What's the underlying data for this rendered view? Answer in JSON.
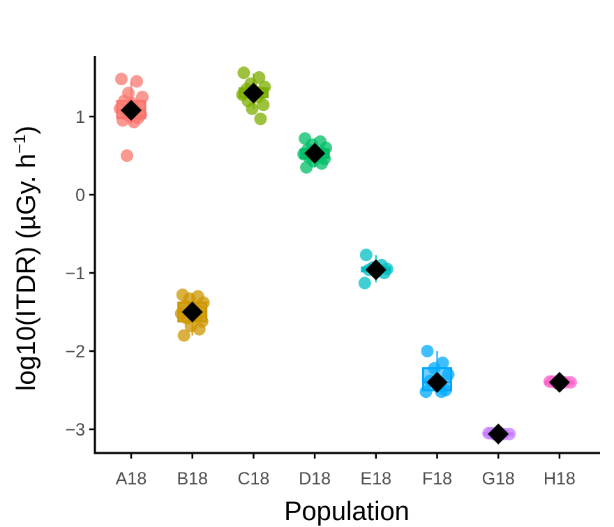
{
  "chart_data": {
    "type": "scatter",
    "subtype": "boxplot-with-jittered-points-and-mean-markers",
    "xlabel": "Population",
    "ylabel_main": "log10(ITDR) (µGy. h",
    "ylabel_sup": "−1",
    "ylabel_close": ")",
    "ylim": [
      -3.3,
      1.8
    ],
    "yticks": [
      1,
      0,
      -1,
      -2,
      -3
    ],
    "ytick_labels": [
      "1",
      "0",
      "−1",
      "−2",
      "−3"
    ],
    "categories": [
      "A18",
      "B18",
      "C18",
      "D18",
      "E18",
      "F18",
      "G18",
      "H18"
    ],
    "grid": false,
    "legend": "none",
    "series": [
      {
        "category": "A18",
        "color": "#F8766D",
        "box": {
          "q1": 0.98,
          "median": 1.08,
          "q3": 1.2,
          "whisker_low": 0.9,
          "whisker_high": 1.45
        },
        "mean": 1.08,
        "points": [
          1.48,
          1.45,
          1.3,
          1.25,
          1.2,
          1.17,
          1.12,
          1.1,
          1.08,
          1.05,
          1.03,
          1.0,
          0.98,
          0.95,
          0.93,
          0.5
        ]
      },
      {
        "category": "B18",
        "color": "#CD9600",
        "box": {
          "q1": -1.62,
          "median": -1.5,
          "q3": -1.38,
          "whisker_low": -1.8,
          "whisker_high": -1.27
        },
        "mean": -1.5,
        "points": [
          -1.28,
          -1.3,
          -1.33,
          -1.38,
          -1.42,
          -1.45,
          -1.5,
          -1.52,
          -1.55,
          -1.58,
          -1.62,
          -1.68,
          -1.72,
          -1.8
        ]
      },
      {
        "category": "C18",
        "color": "#7CAE00",
        "box": {
          "q1": 1.25,
          "median": 1.31,
          "q3": 1.36,
          "whisker_low": 1.1,
          "whisker_high": 1.55
        },
        "mean": 1.3,
        "points": [
          1.56,
          1.5,
          1.42,
          1.38,
          1.35,
          1.32,
          1.3,
          1.28,
          1.25,
          1.2,
          1.15,
          1.1,
          0.97
        ]
      },
      {
        "category": "D18",
        "color": "#00BE67",
        "box": {
          "q1": 0.47,
          "median": 0.52,
          "q3": 0.58,
          "whisker_low": 0.35,
          "whisker_high": 0.72
        },
        "mean": 0.53,
        "points": [
          0.72,
          0.68,
          0.64,
          0.6,
          0.58,
          0.55,
          0.53,
          0.52,
          0.5,
          0.48,
          0.46,
          0.43,
          0.4,
          0.35
        ]
      },
      {
        "category": "E18",
        "color": "#00BFC4",
        "box": {
          "q1": -0.98,
          "median": -0.95,
          "q3": -0.93,
          "whisker_low": -1.12,
          "whisker_high": -0.77
        },
        "mean": -0.96,
        "points": [
          -0.77,
          -0.9,
          -0.93,
          -0.95,
          -0.96,
          -0.98,
          -1.0,
          -1.13
        ]
      },
      {
        "category": "F18",
        "color": "#00A9FF",
        "box": {
          "q1": -2.5,
          "median": -2.4,
          "q3": -2.22,
          "whisker_low": -2.52,
          "whisker_high": -2.0
        },
        "mean": -2.4,
        "points": [
          -2.0,
          -2.15,
          -2.22,
          -2.3,
          -2.38,
          -2.45,
          -2.5,
          -2.52,
          -2.52
        ]
      },
      {
        "category": "G18",
        "color": "#C77CFF",
        "box": {
          "q1": -3.07,
          "median": -3.06,
          "q3": -3.05,
          "whisker_low": -3.08,
          "whisker_high": -3.04
        },
        "mean": -3.06,
        "points": [
          -3.05,
          -3.06,
          -3.07,
          -3.06,
          -3.05,
          -3.07
        ]
      },
      {
        "category": "H18",
        "color": "#FF61CC",
        "box": {
          "q1": -2.41,
          "median": -2.4,
          "q3": -2.39,
          "whisker_low": -2.42,
          "whisker_high": -2.38
        },
        "mean": -2.4,
        "points": [
          -2.39,
          -2.4,
          -2.41,
          -2.4,
          -2.39,
          -2.41
        ]
      }
    ]
  }
}
